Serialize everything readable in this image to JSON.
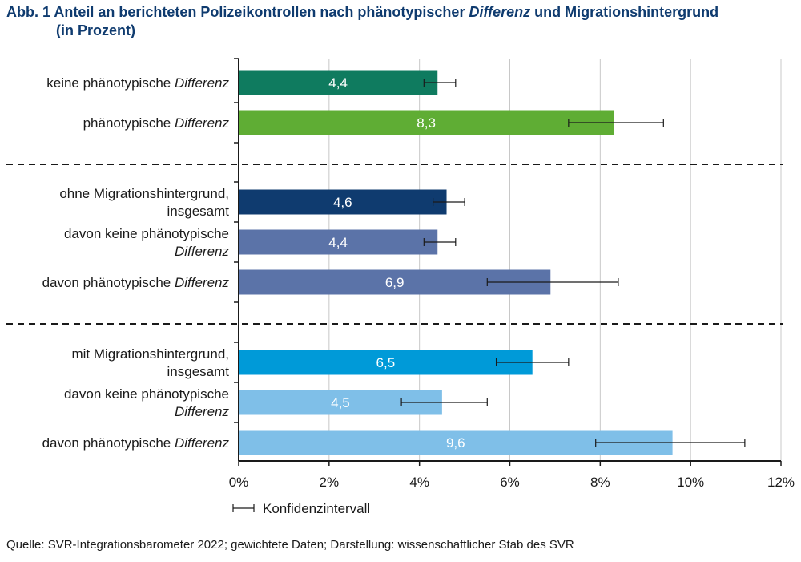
{
  "title": {
    "prefix": "Abb. 1",
    "main_before": "Anteil an berichteten Polizeikontrollen nach phänotypischer",
    "main_italic": "Differenz",
    "main_after": "und Migrationshintergrund",
    "line2": "(in Prozent)"
  },
  "source": "Quelle: SVR-Integrationsbarometer 2022; gewichtete Daten; Darstellung: wissenschaftlicher Stab des SVR",
  "chart_data": {
    "type": "bar",
    "orientation": "horizontal",
    "categories": [
      {
        "lines": [
          [
            "keine phänotypische ",
            false
          ],
          [
            "Differenz",
            true
          ]
        ]
      },
      {
        "lines": [
          [
            "phänotypische ",
            false
          ],
          [
            "Differenz",
            true
          ]
        ]
      },
      {
        "lines": [
          [
            "ohne Migrationshintergrund,",
            false
          ]
        ],
        "lines2": [
          [
            "insgesamt",
            false
          ]
        ]
      },
      {
        "lines": [
          [
            "davon keine phänotypische",
            false
          ]
        ],
        "lines2": [
          [
            "Differenz",
            true
          ]
        ]
      },
      {
        "lines": [
          [
            "davon phänotypische ",
            false
          ],
          [
            "Differenz",
            true
          ]
        ]
      },
      {
        "lines": [
          [
            "mit Migrationshintergrund,",
            false
          ]
        ],
        "lines2": [
          [
            "insgesamt",
            false
          ]
        ]
      },
      {
        "lines": [
          [
            "davon keine phänotypische",
            false
          ]
        ],
        "lines2": [
          [
            "Differenz",
            true
          ]
        ]
      },
      {
        "lines": [
          [
            "davon phänotypische ",
            false
          ],
          [
            "Differenz",
            true
          ]
        ]
      }
    ],
    "values": [
      4.4,
      8.3,
      4.6,
      4.4,
      6.9,
      6.5,
      4.5,
      9.6
    ],
    "value_labels": [
      "4,4",
      "8,3",
      "4,6",
      "4,4",
      "6,9",
      "6,5",
      "4,5",
      "9,6"
    ],
    "ci_low": [
      4.1,
      7.3,
      4.3,
      4.1,
      5.5,
      5.7,
      3.6,
      7.9
    ],
    "ci_high": [
      4.8,
      9.4,
      5.0,
      4.8,
      8.4,
      7.3,
      5.5,
      11.2
    ],
    "colors": [
      "#0f7b5f",
      "#5fad34",
      "#0f3b6f",
      "#5b73a8",
      "#5b73a8",
      "#009ad8",
      "#7fbfe8",
      "#7fbfe8"
    ],
    "groups": [
      [
        0,
        1
      ],
      [
        2,
        3,
        4
      ],
      [
        5,
        6,
        7
      ]
    ],
    "xlim": [
      0,
      12
    ],
    "xticks": [
      0,
      2,
      4,
      6,
      8,
      10,
      12
    ],
    "xtick_labels": [
      "0%",
      "2%",
      "4%",
      "6%",
      "8%",
      "10%",
      "12%"
    ],
    "grid": true,
    "legend": {
      "label": "Konfidenzintervall",
      "position": "bottom-left"
    }
  }
}
